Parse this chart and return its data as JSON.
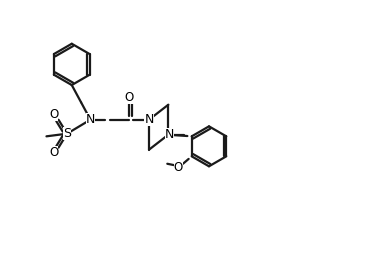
{
  "bg_color": "#ffffff",
  "bond_color": "#1a1a1a",
  "bond_width": 1.6,
  "text_color": "#000000",
  "font_size": 8.5,
  "figsize": [
    3.9,
    2.72
  ],
  "dpi": 100,
  "xlim": [
    0,
    10.5
  ],
  "ylim": [
    -0.5,
    7.5
  ]
}
